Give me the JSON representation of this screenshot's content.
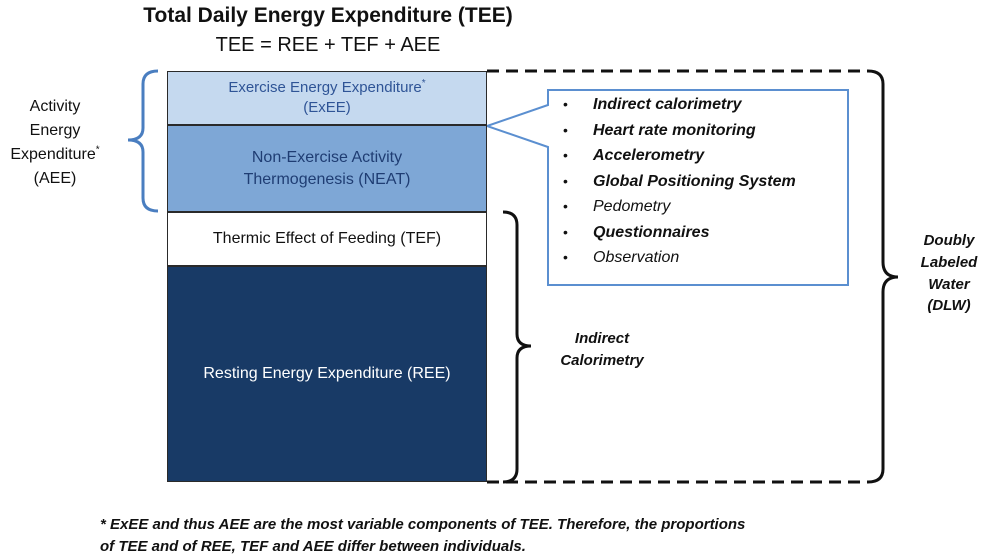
{
  "title": "Total Daily Energy Expenditure (TEE)",
  "equation": "TEE = REE + TEF + AEE",
  "blocks": {
    "exee_line1": "Exercise Energy Expenditure",
    "exee_sup": "*",
    "exee_line2": "(ExEE)",
    "neat_line1": "Non-Exercise Activity",
    "neat_line2": "Thermogenesis (NEAT)",
    "tef": "Thermic Effect of Feeding (TEF)",
    "ree": "Resting Energy Expenditure (REE)"
  },
  "aee_label": {
    "line1": "Activity",
    "line2": "Energy",
    "line3": "Expenditure",
    "sup": "*",
    "line4": "(AEE)"
  },
  "methods": [
    {
      "text": "Indirect calorimetry",
      "bold": true
    },
    {
      "text": "Heart rate monitoring",
      "bold": true
    },
    {
      "text": "Accelerometry",
      "bold": true
    },
    {
      "text": "Global Positioning System",
      "bold": true
    },
    {
      "text": "Pedometry",
      "bold": false
    },
    {
      "text": "Questionnaires",
      "bold": true
    },
    {
      "text": "Observation",
      "bold": false
    }
  ],
  "bullet_symbol": "•",
  "dlw_label": {
    "line1": "Doubly",
    "line2": "Labeled",
    "line3": "Water",
    "line4": "(DLW)"
  },
  "ic_label": {
    "line1": "Indirect",
    "line2": "Calorimetry"
  },
  "footnote": {
    "line1": "* ExEE and thus AEE are the most variable components of TEE. Therefore, the proportions",
    "line2": "of TEE and of REE, TEF and AEE differ between individuals."
  },
  "colors": {
    "exee": "#c5d9ef",
    "neat": "#7ea7d6",
    "ree": "#183a66",
    "callout_border": "#5b8fd0",
    "aee_brace": "#4a7ec0"
  }
}
